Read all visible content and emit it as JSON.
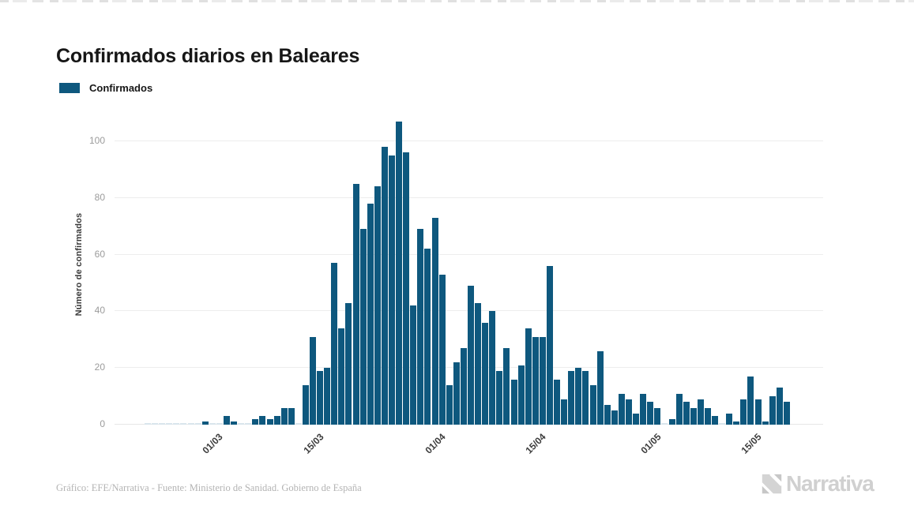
{
  "title": "Confirmados diarios en Baleares",
  "legend": {
    "label": "Confirmados",
    "color": "#0e587e"
  },
  "footer": {
    "attribution": "Gráfico: EFE/Narrativa - Fuente: Ministerio de Sanidad. Gobierno de España"
  },
  "logo": {
    "text": "Narrativa",
    "icon": "narrativa-n-icon"
  },
  "chart_data": {
    "type": "bar",
    "title": "Confirmados diarios en Baleares",
    "series_name": "Confirmados",
    "xlabel": "",
    "ylabel": "Número de confirmados",
    "ylim": [
      0,
      110
    ],
    "y_ticks": [
      0,
      20,
      40,
      60,
      80,
      100
    ],
    "grid": "horizontal",
    "legend_position": "top-left",
    "bar_color": "#0e587e",
    "zero_bar_color": "#d9e5ec",
    "x_tick_labels": [
      "01/03",
      "15/03",
      "01/04",
      "15/04",
      "01/05",
      "15/05"
    ],
    "categories": [
      "22/02",
      "23/02",
      "24/02",
      "25/02",
      "26/02",
      "27/02",
      "28/02",
      "29/02",
      "01/03",
      "02/03",
      "03/03",
      "04/03",
      "05/03",
      "06/03",
      "07/03",
      "08/03",
      "09/03",
      "10/03",
      "11/03",
      "12/03",
      "13/03",
      "14/03",
      "15/03",
      "16/03",
      "17/03",
      "18/03",
      "19/03",
      "20/03",
      "21/03",
      "22/03",
      "23/03",
      "24/03",
      "25/03",
      "26/03",
      "27/03",
      "28/03",
      "29/03",
      "30/03",
      "31/03",
      "01/04",
      "02/04",
      "03/04",
      "04/04",
      "05/04",
      "06/04",
      "07/04",
      "08/04",
      "09/04",
      "10/04",
      "11/04",
      "12/04",
      "13/04",
      "14/04",
      "15/04",
      "16/04",
      "17/04",
      "18/04",
      "19/04",
      "20/04",
      "21/04",
      "22/04",
      "23/04",
      "24/04",
      "25/04",
      "26/04",
      "27/04",
      "28/04",
      "29/04",
      "30/04",
      "01/05",
      "02/05",
      "03/05",
      "04/05",
      "05/05",
      "06/05",
      "07/05",
      "08/05",
      "09/05",
      "10/05",
      "11/05",
      "12/05",
      "13/05",
      "14/05",
      "15/05",
      "16/05",
      "17/05",
      "18/05",
      "19/05",
      "20/05",
      "21/05"
    ],
    "values": [
      0,
      0,
      0,
      0,
      0,
      0,
      0,
      0,
      1,
      0,
      0,
      3,
      1,
      0,
      0,
      2,
      3,
      2,
      3,
      6,
      6,
      0,
      14,
      31,
      19,
      20,
      57,
      34,
      43,
      85,
      69,
      78,
      84,
      98,
      95,
      107,
      96,
      42,
      69,
      62,
      73,
      53,
      14,
      22,
      27,
      49,
      43,
      36,
      40,
      19,
      27,
      16,
      21,
      34,
      31,
      31,
      56,
      16,
      9,
      19,
      20,
      19,
      14,
      26,
      7,
      5,
      11,
      9,
      4,
      11,
      8,
      6,
      0,
      2,
      11,
      8,
      6,
      9,
      6,
      3,
      0,
      4,
      1,
      9,
      17,
      9,
      1,
      10,
      13,
      8
    ]
  }
}
